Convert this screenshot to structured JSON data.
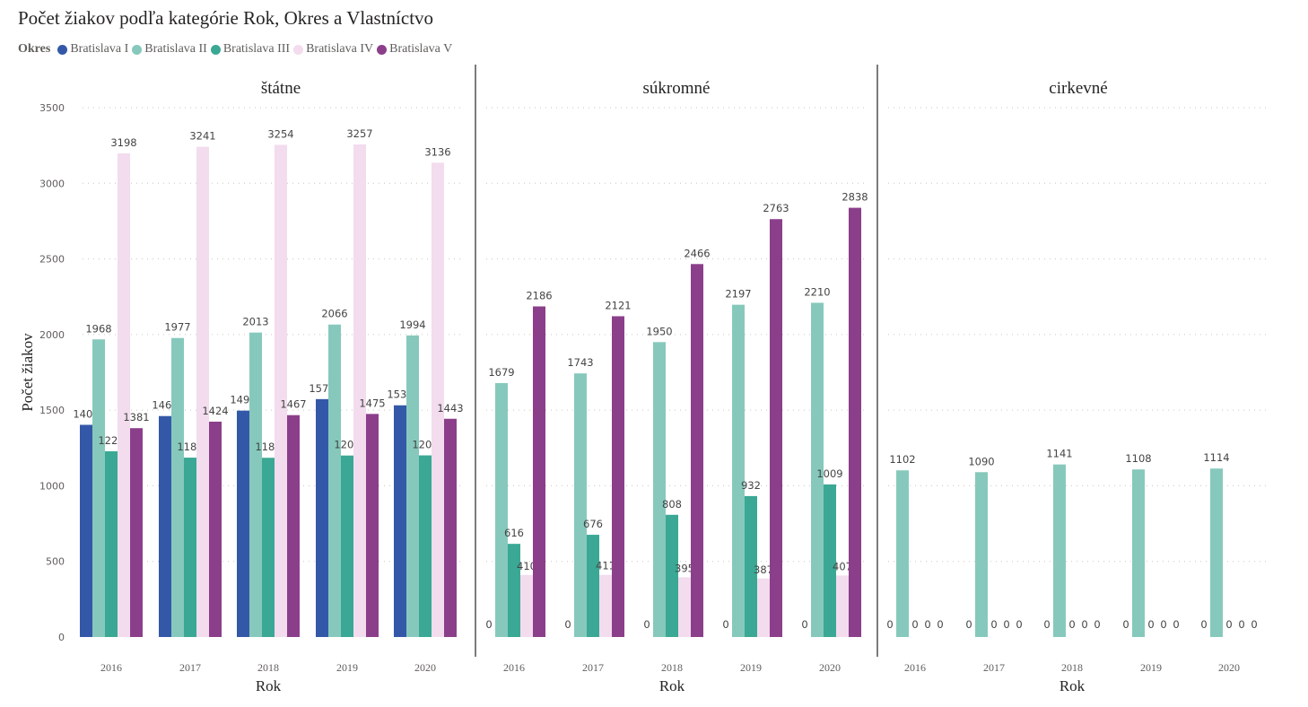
{
  "title": "Počet žiakov podľa kategórie Rok, Okres a Vlastníctvo",
  "legend": {
    "title": "Okres",
    "items": [
      {
        "name": "Bratislava I",
        "color": "#3458a8"
      },
      {
        "name": "Bratislava II",
        "color": "#86c9bc"
      },
      {
        "name": "Bratislava III",
        "color": "#3aa894"
      },
      {
        "name": "Bratislava IV",
        "color": "#f2dcee"
      },
      {
        "name": "Bratislava V",
        "color": "#8b3f8a"
      }
    ]
  },
  "chart_data": {
    "type": "bar",
    "title": "Počet žiakov podľa kategórie Rok, Okres a Vlastníctvo",
    "xlabel": "Rok",
    "ylabel": "Počet žiakov",
    "ylim": [
      0,
      3500
    ],
    "yticks": [
      0,
      500,
      1000,
      1500,
      2000,
      2500,
      3000,
      3500
    ],
    "grid": true,
    "legend_position": "top-left",
    "categories": [
      "2016",
      "2017",
      "2018",
      "2019",
      "2020"
    ],
    "panels": [
      {
        "name": "štátne",
        "series": [
          {
            "name": "Bratislava I",
            "values": [
              1403,
              1461,
              1497,
              1573,
              1532
            ]
          },
          {
            "name": "Bratislava II",
            "values": [
              1968,
              1977,
              2013,
              2066,
              1994
            ]
          },
          {
            "name": "Bratislava III",
            "values": [
              1228,
              1186,
              1185,
              1200,
              1201
            ]
          },
          {
            "name": "Bratislava IV",
            "values": [
              3198,
              3241,
              3254,
              3257,
              3136
            ]
          },
          {
            "name": "Bratislava V",
            "values": [
              1381,
              1424,
              1467,
              1475,
              1443
            ]
          }
        ]
      },
      {
        "name": "súkromné",
        "series": [
          {
            "name": "Bratislava I",
            "values": [
              0,
              0,
              0,
              0,
              0
            ]
          },
          {
            "name": "Bratislava II",
            "values": [
              1679,
              1743,
              1950,
              2197,
              2210
            ]
          },
          {
            "name": "Bratislava III",
            "values": [
              616,
              676,
              808,
              932,
              1009
            ]
          },
          {
            "name": "Bratislava IV",
            "values": [
              410,
              411,
              395,
              387,
              407
            ]
          },
          {
            "name": "Bratislava V",
            "values": [
              2186,
              2121,
              2466,
              2763,
              2838
            ]
          }
        ]
      },
      {
        "name": "cirkevné",
        "series": [
          {
            "name": "Bratislava I",
            "values": [
              0,
              0,
              0,
              0,
              0
            ]
          },
          {
            "name": "Bratislava II",
            "values": [
              1102,
              1090,
              1141,
              1108,
              1114
            ]
          },
          {
            "name": "Bratislava III",
            "values": [
              0,
              0,
              0,
              0,
              0
            ]
          },
          {
            "name": "Bratislava IV",
            "values": [
              0,
              0,
              0,
              0,
              0
            ]
          },
          {
            "name": "Bratislava V",
            "values": [
              0,
              0,
              0,
              0,
              0
            ]
          }
        ]
      }
    ]
  }
}
